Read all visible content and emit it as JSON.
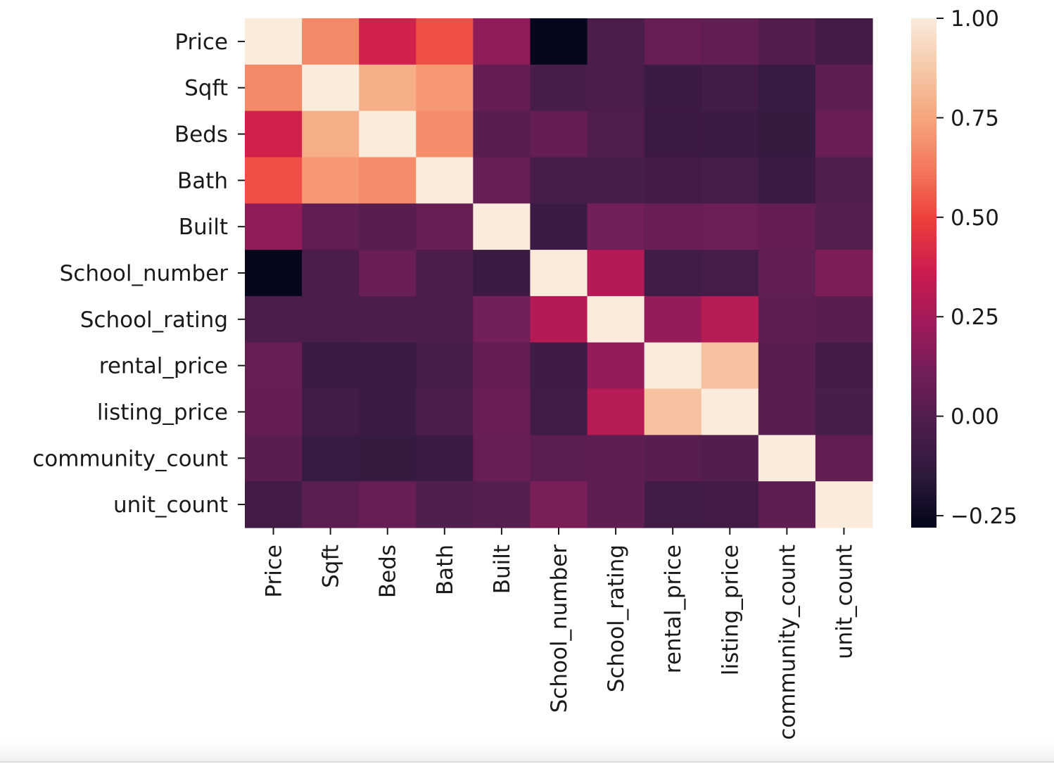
{
  "chart_data": {
    "type": "heatmap",
    "title": "",
    "xlabel": "",
    "ylabel": "",
    "labels": [
      "Price",
      "Sqft",
      "Beds",
      "Bath",
      "Built",
      "School_number",
      "School_rating",
      "rental_price",
      "listing_price",
      "community_count",
      "unit_count"
    ],
    "matrix": [
      [
        1.0,
        0.67,
        0.38,
        0.53,
        0.19,
        -0.27,
        -0.03,
        0.07,
        0.05,
        0.0,
        -0.06
      ],
      [
        0.67,
        1.0,
        0.78,
        0.71,
        0.06,
        -0.04,
        -0.03,
        -0.09,
        -0.07,
        -0.11,
        0.04
      ],
      [
        0.38,
        0.78,
        1.0,
        0.68,
        0.02,
        0.06,
        -0.01,
        -0.09,
        -0.09,
        -0.12,
        0.08
      ],
      [
        0.53,
        0.71,
        0.68,
        1.0,
        0.07,
        -0.04,
        -0.04,
        -0.06,
        -0.05,
        -0.09,
        -0.01
      ],
      [
        0.19,
        0.05,
        0.02,
        0.07,
        1.0,
        -0.09,
        0.11,
        0.08,
        0.09,
        0.06,
        0.01
      ],
      [
        -0.27,
        -0.03,
        0.08,
        -0.02,
        -0.09,
        1.0,
        0.29,
        -0.07,
        -0.05,
        0.05,
        0.14
      ],
      [
        -0.03,
        -0.03,
        -0.02,
        -0.03,
        0.11,
        0.29,
        1.0,
        0.2,
        0.3,
        0.04,
        0.02
      ],
      [
        0.07,
        -0.09,
        -0.1,
        -0.05,
        0.06,
        -0.08,
        0.2,
        1.0,
        0.85,
        0.02,
        -0.06
      ],
      [
        0.06,
        -0.07,
        -0.09,
        -0.03,
        0.08,
        -0.07,
        0.3,
        0.85,
        1.0,
        0.02,
        -0.04
      ],
      [
        0.02,
        -0.11,
        -0.12,
        -0.09,
        0.07,
        0.03,
        0.04,
        0.02,
        0.0,
        1.0,
        0.05
      ],
      [
        -0.06,
        0.03,
        0.07,
        -0.01,
        0.01,
        0.13,
        0.04,
        -0.07,
        -0.06,
        0.04,
        1.0
      ]
    ],
    "colorbar": {
      "min": -0.28,
      "max": 1.0,
      "ticks": [
        "1.00",
        "0.75",
        "0.50",
        "0.25",
        "0.00",
        "−0.25"
      ],
      "tick_values": [
        1.0,
        0.75,
        0.5,
        0.25,
        0.0,
        -0.25
      ],
      "colormap": "rocket",
      "color_stops": [
        "#03051a",
        "#2d1a3a",
        "#4c1d4b",
        "#701f57",
        "#a11a5b",
        "#cb1b4f",
        "#ed3c3c",
        "#f3765a",
        "#f6a47c",
        "#f6c8a7",
        "#faebdd"
      ]
    }
  }
}
